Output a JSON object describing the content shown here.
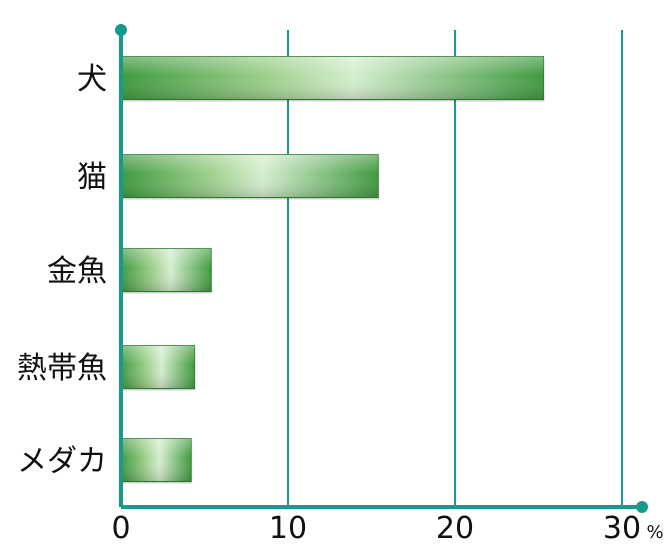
{
  "chart_data": {
    "type": "bar",
    "orientation": "horizontal",
    "categories": [
      "犬",
      "猫",
      "金魚",
      "熱帯魚",
      "メダカ"
    ],
    "values": [
      25.3,
      15.4,
      5.4,
      4.4,
      4.2
    ],
    "xlim": [
      0,
      30
    ],
    "x_ticks": [
      "0",
      "10",
      "20",
      "30"
    ],
    "x_unit": "%",
    "grid": true,
    "title": "",
    "xlabel": "",
    "ylabel": "",
    "colors": {
      "axis": "#169a8c",
      "grid": "#169a8c",
      "bar_dark": "#3f9a3f",
      "bar_mid": "#9fd08c",
      "bar_light": "#d6edcf",
      "bar_edge": "#2f7f32",
      "text": "#111111"
    }
  }
}
